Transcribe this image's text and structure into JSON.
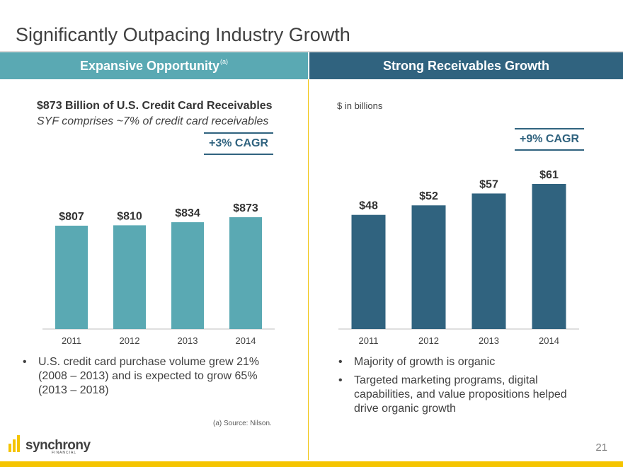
{
  "title": "Significantly Outpacing Industry Growth",
  "left_panel": {
    "header": "Expansive Opportunity",
    "header_note": "(a)",
    "heading": "$873 Billion of U.S. Credit Card Receivables",
    "subheading": "SYF comprises ~7% of credit card receivables",
    "cagr": "+3% CAGR",
    "bullets": [
      "U.S. credit card purchase volume grew 21% (2008 – 2013) and is expected to grow 65% (2013 – 2018)"
    ],
    "footnote": "(a) Source: Nilson."
  },
  "right_panel": {
    "header": "Strong Receivables Growth",
    "units": "$ in billions",
    "cagr": "+9% CAGR",
    "bullets": [
      "Majority of growth is organic",
      "Targeted marketing programs, digital capabilities, and value propositions helped drive organic growth"
    ]
  },
  "page_number": "21",
  "logo": {
    "word": "synchrony",
    "sub": "FINANCIAL"
  },
  "colors": {
    "teal": "#5aa9b3",
    "navy": "#30637f",
    "gold": "#f5c400"
  },
  "chart_data": [
    {
      "type": "bar",
      "categories": [
        "2011",
        "2012",
        "2013",
        "2014"
      ],
      "values": [
        807,
        810,
        834,
        873
      ],
      "data_labels": [
        "$807",
        "$810",
        "$834",
        "$873"
      ],
      "color": "#5aa9b3"
    },
    {
      "type": "bar",
      "categories": [
        "2011",
        "2012",
        "2013",
        "2014"
      ],
      "values": [
        48,
        52,
        57,
        61
      ],
      "data_labels": [
        "$48",
        "$52",
        "$57",
        "$61"
      ],
      "color": "#30637f"
    }
  ]
}
